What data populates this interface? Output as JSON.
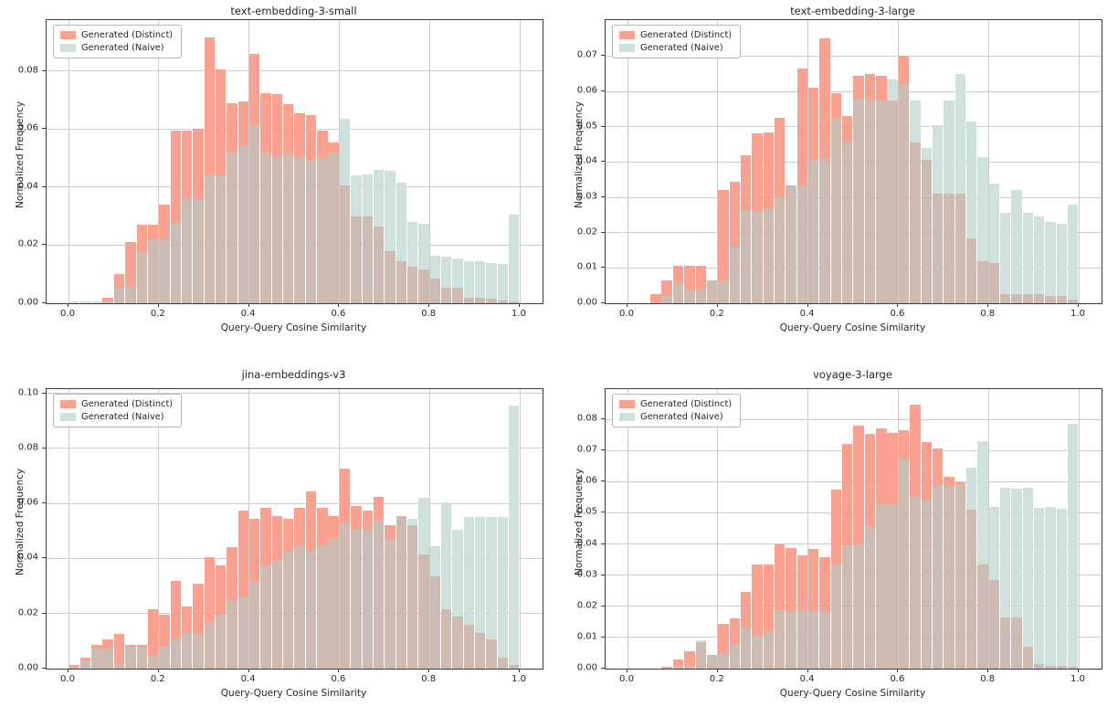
{
  "figure_title": "",
  "legend": {
    "distinct_label": "Generated (Distinct)",
    "naive_label": "Generated (Naive)"
  },
  "colors": {
    "distinct_fill": "#F9A18E",
    "naive_fill": "#CFE1DD",
    "overlap_fill": "#CDBBB2",
    "grid": "#cccccc",
    "spine": "#3c3c3c",
    "text": "#262626"
  },
  "chart_data": [
    {
      "type": "histogram",
      "title": "text-embedding-3-small",
      "xlabel": "Query-Query Cosine Similarity",
      "ylabel": "Normalized Frequency",
      "bin_width": 0.025,
      "bin_start": 0.0,
      "xticks": [
        0.0,
        0.2,
        0.4,
        0.6,
        0.8,
        1.0
      ],
      "yticks": [
        0.0,
        0.02,
        0.04,
        0.06,
        0.08
      ],
      "ylim": 0.0976,
      "legend_position": "upper left",
      "series": [
        {
          "name": "Generated (Distinct)",
          "values": [
            0,
            0,
            0,
            0.002,
            0.01,
            0.021,
            0.027,
            0.027,
            0.034,
            0.0595,
            0.0595,
            0.06,
            0.0915,
            0.0805,
            0.069,
            0.0695,
            0.086,
            0.0725,
            0.072,
            0.0685,
            0.0655,
            0.065,
            0.0595,
            0.0555,
            0.0405,
            0.03,
            0.03,
            0.0265,
            0.018,
            0.0145,
            0.0125,
            0.0115,
            0.0085,
            0.0055,
            0.0055,
            0.002,
            0.002,
            0.0015,
            0.001,
            0.0005
          ]
        },
        {
          "name": "Generated (Naive)",
          "values": [
            0.0005,
            0.0005,
            0.0005,
            0.0005,
            0.005,
            0.006,
            0.0175,
            0.022,
            0.022,
            0.028,
            0.036,
            0.036,
            0.044,
            0.044,
            0.052,
            0.054,
            0.0615,
            0.052,
            0.0505,
            0.052,
            0.0505,
            0.0495,
            0.05,
            0.052,
            0.0635,
            0.044,
            0.0445,
            0.046,
            0.0455,
            0.0415,
            0.028,
            0.0275,
            0.0165,
            0.016,
            0.0155,
            0.0145,
            0.0145,
            0.014,
            0.0135,
            0.0305
          ]
        }
      ]
    },
    {
      "type": "histogram",
      "title": "text-embedding-3-large",
      "xlabel": "Query-Query Cosine Similarity",
      "ylabel": "Normalized Frequency",
      "bin_width": 0.025,
      "bin_start": 0.0,
      "xticks": [
        0.0,
        0.2,
        0.4,
        0.6,
        0.8,
        1.0
      ],
      "yticks": [
        0.0,
        0.01,
        0.02,
        0.03,
        0.04,
        0.05,
        0.06,
        0.07
      ],
      "ylim": 0.0802,
      "legend_position": "upper left",
      "series": [
        {
          "name": "Generated (Distinct)",
          "values": [
            0,
            0,
            0.0025,
            0.0065,
            0.0105,
            0.0105,
            0.0105,
            0.0065,
            0.032,
            0.0345,
            0.042,
            0.048,
            0.0485,
            0.0525,
            0.0335,
            0.0665,
            0.061,
            0.075,
            0.0595,
            0.053,
            0.0645,
            0.065,
            0.0645,
            0.0575,
            0.07,
            0.0455,
            0.0405,
            0.031,
            0.031,
            0.031,
            0.0185,
            0.012,
            0.0115,
            0.0025,
            0.0025,
            0.0025,
            0.0025,
            0.002,
            0.002,
            0.001
          ]
        },
        {
          "name": "Generated (Naive)",
          "values": [
            0,
            0,
            0,
            0.002,
            0.0057,
            0.004,
            0.004,
            0.0065,
            0.0065,
            0.016,
            0.0265,
            0.026,
            0.027,
            0.03,
            0.0335,
            0.033,
            0.0405,
            0.041,
            0.0525,
            0.0455,
            0.058,
            0.0575,
            0.0575,
            0.0635,
            0.062,
            0.0575,
            0.044,
            0.0505,
            0.0575,
            0.065,
            0.0515,
            0.0415,
            0.034,
            0.0255,
            0.032,
            0.0255,
            0.0245,
            0.023,
            0.0225,
            0.028
          ]
        }
      ]
    },
    {
      "type": "histogram",
      "title": "jina-embeddings-v3",
      "xlabel": "Query-Query Cosine Similarity",
      "ylabel": "Normalized Frequency",
      "bin_width": 0.025,
      "bin_start": 0.0,
      "xticks": [
        0.0,
        0.2,
        0.4,
        0.6,
        0.8,
        1.0
      ],
      "yticks": [
        0.0,
        0.02,
        0.04,
        0.06,
        0.08,
        0.1
      ],
      "ylim": 0.1015,
      "legend_position": "upper left",
      "series": [
        {
          "name": "Generated (Distinct)",
          "values": [
            0.0012,
            0.004,
            0.0085,
            0.0105,
            0.0125,
            0.0085,
            0.0085,
            0.0215,
            0.0195,
            0.032,
            0.0225,
            0.031,
            0.0405,
            0.0375,
            0.044,
            0.0575,
            0.0545,
            0.0585,
            0.0555,
            0.0545,
            0.0585,
            0.0645,
            0.0585,
            0.0555,
            0.0725,
            0.059,
            0.0575,
            0.0625,
            0.052,
            0.0555,
            0.052,
            0.0415,
            0.0335,
            0.0215,
            0.019,
            0.016,
            0.013,
            0.0105,
            0.004,
            0.0012
          ]
        },
        {
          "name": "Generated (Naive)",
          "values": [
            0.001,
            0.0028,
            0.0072,
            0.0072,
            0.0015,
            0.008,
            0.008,
            0.0045,
            0.008,
            0.0105,
            0.0125,
            0.0125,
            0.0165,
            0.02,
            0.0245,
            0.026,
            0.0315,
            0.0375,
            0.0395,
            0.0425,
            0.0445,
            0.0425,
            0.0445,
            0.0475,
            0.053,
            0.0505,
            0.0505,
            0.054,
            0.047,
            0.0555,
            0.0545,
            0.062,
            0.0445,
            0.0605,
            0.0505,
            0.055,
            0.055,
            0.055,
            0.055,
            0.0955
          ]
        }
      ]
    },
    {
      "type": "histogram",
      "title": "voyage-3-large",
      "xlabel": "Query-Query Cosine Similarity",
      "ylabel": "Normalized Frequency",
      "bin_width": 0.025,
      "bin_start": 0.0,
      "xticks": [
        0.0,
        0.2,
        0.4,
        0.6,
        0.8,
        1.0
      ],
      "yticks": [
        0.0,
        0.01,
        0.02,
        0.03,
        0.04,
        0.05,
        0.06,
        0.07,
        0.08
      ],
      "ylim": 0.0897,
      "legend_position": "upper left",
      "series": [
        {
          "name": "Generated (Distinct)",
          "values": [
            0,
            0,
            0,
            0.0005,
            0.0028,
            0.0055,
            0.0085,
            0.0045,
            0.0145,
            0.016,
            0.0245,
            0.0335,
            0.0335,
            0.04,
            0.0388,
            0.0364,
            0.0385,
            0.0359,
            0.0575,
            0.072,
            0.078,
            0.0752,
            0.0771,
            0.0757,
            0.0765,
            0.0848,
            0.0728,
            0.0706,
            0.0615,
            0.0598,
            0.051,
            0.0335,
            0.0285,
            0.0165,
            0.0165,
            0.007,
            0.0015,
            0.001,
            0.001,
            0.0005
          ]
        },
        {
          "name": "Generated (Naive)",
          "values": [
            0,
            0,
            0,
            0,
            0.001,
            0.001,
            0.0092,
            0.0045,
            0.0048,
            0.0075,
            0.013,
            0.0107,
            0.012,
            0.019,
            0.0185,
            0.019,
            0.0185,
            0.0185,
            0.0335,
            0.0395,
            0.04,
            0.0455,
            0.0527,
            0.053,
            0.0675,
            0.055,
            0.054,
            0.0585,
            0.0585,
            0.0594,
            0.0645,
            0.073,
            0.052,
            0.058,
            0.0578,
            0.058,
            0.0517,
            0.0519,
            0.0512,
            0.0787
          ]
        }
      ]
    }
  ]
}
